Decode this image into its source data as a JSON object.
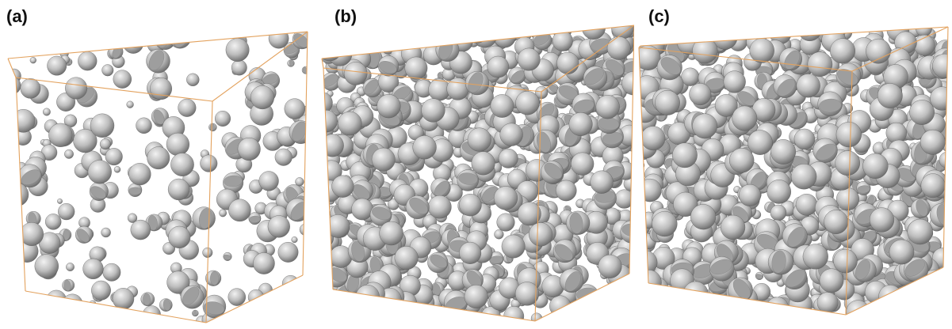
{
  "figure": {
    "panels": [
      {
        "label": "(a)",
        "packing": "sparse"
      },
      {
        "label": "(b)",
        "packing": "dense"
      },
      {
        "label": "(c)",
        "packing": "dense-cut"
      }
    ],
    "colors": {
      "background": "#ffffff",
      "box_edge": "#e3a25e",
      "sphere_light": "#f2f2f2",
      "sphere_mid": "#bdbdbd",
      "sphere_dark": "#6e6e6e",
      "cut_face": "#9e9e9e"
    }
  }
}
